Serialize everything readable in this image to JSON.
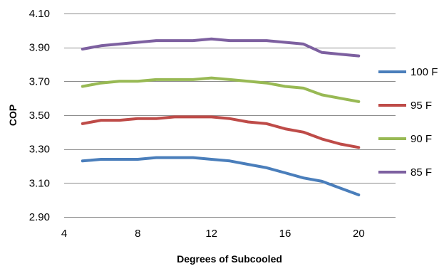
{
  "chart_data": {
    "type": "line",
    "xlabel": "Degrees of Subcooled",
    "ylabel": "COP",
    "xlim": [
      4,
      22
    ],
    "ylim": [
      2.9,
      4.1
    ],
    "xticks": [
      4,
      8,
      12,
      16,
      20
    ],
    "xtick_labels": [
      "4",
      "8",
      "12",
      "16",
      "20"
    ],
    "yticks": [
      2.9,
      3.1,
      3.3,
      3.5,
      3.7,
      3.9,
      4.1
    ],
    "ytick_labels": [
      "2.90",
      "3.10",
      "3.30",
      "3.50",
      "3.70",
      "3.90",
      "4.10"
    ],
    "grid": "horizontal",
    "legend_position": "right",
    "x": [
      5,
      6,
      7,
      8,
      9,
      10,
      11,
      12,
      13,
      14,
      15,
      16,
      17,
      18,
      19,
      20
    ],
    "series": [
      {
        "name": "100 F",
        "color": "#4a7ebb",
        "values": [
          3.23,
          3.24,
          3.24,
          3.24,
          3.25,
          3.25,
          3.25,
          3.24,
          3.23,
          3.21,
          3.19,
          3.16,
          3.13,
          3.11,
          3.07,
          3.03
        ]
      },
      {
        "name": "95 F",
        "color": "#be4b48",
        "values": [
          3.45,
          3.47,
          3.47,
          3.48,
          3.48,
          3.49,
          3.49,
          3.49,
          3.48,
          3.46,
          3.45,
          3.42,
          3.4,
          3.36,
          3.33,
          3.31
        ]
      },
      {
        "name": "90 F",
        "color": "#98b954",
        "values": [
          3.67,
          3.69,
          3.7,
          3.7,
          3.71,
          3.71,
          3.71,
          3.72,
          3.71,
          3.7,
          3.69,
          3.67,
          3.66,
          3.62,
          3.6,
          3.58
        ]
      },
      {
        "name": "85 F",
        "color": "#7d60a0",
        "values": [
          3.89,
          3.91,
          3.92,
          3.93,
          3.94,
          3.94,
          3.94,
          3.95,
          3.94,
          3.94,
          3.94,
          3.93,
          3.92,
          3.87,
          3.86,
          3.85
        ]
      }
    ]
  }
}
